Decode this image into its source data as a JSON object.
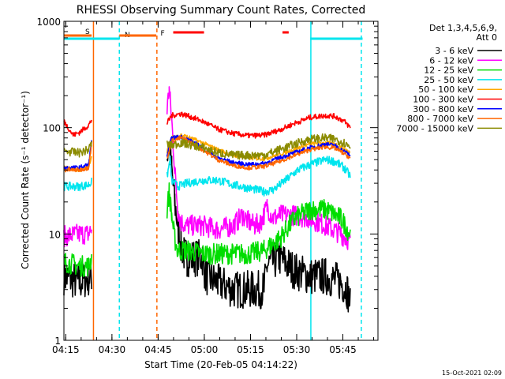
{
  "chart_data": {
    "type": "line",
    "title": "RHESSI Observing Summary Count Rates, Corrected",
    "xlabel": "Start Time (20-Feb-05 04:14:22)",
    "ylabel": "Corrected Count Rate (s⁻¹ detector⁻¹)",
    "yscale": "log",
    "ylim": [
      1,
      1000
    ],
    "xlim": [
      0,
      102
    ],
    "x_unit": "minutes after 04:14:22",
    "x_ticks": [
      {
        "t": 0.6,
        "label": "04:15"
      },
      {
        "t": 15.6,
        "label": "04:30"
      },
      {
        "t": 30.6,
        "label": "04:45"
      },
      {
        "t": 45.6,
        "label": "05:00"
      },
      {
        "t": 60.6,
        "label": "05:15"
      },
      {
        "t": 75.6,
        "label": "05:30"
      },
      {
        "t": 90.6,
        "label": "05:45"
      }
    ],
    "y_ticks": [
      {
        "v": 1,
        "label": "1"
      },
      {
        "v": 10,
        "label": "10"
      },
      {
        "v": 100,
        "label": "100"
      },
      {
        "v": 1000,
        "label": "1000"
      }
    ],
    "legend": {
      "header": [
        "Det 1,3,4,5,6,9,",
        "Att 0"
      ],
      "placement": "right"
    },
    "series": [
      {
        "name": "3 - 6 keV",
        "color": "#000000",
        "noise": 0.18,
        "points": [
          [
            0,
            4
          ],
          [
            5,
            3.5
          ],
          [
            9,
            4
          ],
          [
            10,
            null
          ],
          [
            33.5,
            55
          ],
          [
            34.2,
            70
          ],
          [
            35,
            40
          ],
          [
            36,
            20
          ],
          [
            37,
            12
          ],
          [
            38,
            8
          ],
          [
            39,
            6.5
          ],
          [
            40,
            6
          ],
          [
            45,
            6
          ],
          [
            46,
            4
          ],
          [
            50,
            3.5
          ],
          [
            55,
            3
          ],
          [
            60,
            3
          ],
          [
            65,
            3
          ],
          [
            66,
            5
          ],
          [
            70,
            6
          ],
          [
            75,
            4.5
          ],
          [
            80,
            4
          ],
          [
            85,
            4
          ],
          [
            90,
            3.5
          ],
          [
            92,
            3
          ],
          [
            93,
            2.2
          ]
        ]
      },
      {
        "name": "6 - 12 keV",
        "color": "#ff00ff",
        "noise": 0.1,
        "points": [
          [
            0,
            9.5
          ],
          [
            5,
            10
          ],
          [
            8,
            10
          ],
          [
            9,
            11
          ],
          [
            10,
            null
          ],
          [
            33.5,
            150
          ],
          [
            34.2,
            230
          ],
          [
            35,
            120
          ],
          [
            36,
            40
          ],
          [
            37,
            17
          ],
          [
            38,
            13
          ],
          [
            40,
            12
          ],
          [
            45,
            12
          ],
          [
            50,
            11
          ],
          [
            55,
            12
          ],
          [
            58,
            15
          ],
          [
            60,
            13
          ],
          [
            62,
            12
          ],
          [
            64,
            13
          ],
          [
            66,
            18
          ],
          [
            68,
            14
          ],
          [
            70,
            15
          ],
          [
            75,
            15
          ],
          [
            80,
            14
          ],
          [
            85,
            12
          ],
          [
            90,
            10
          ],
          [
            93,
            8.5
          ]
        ]
      },
      {
        "name": "12 - 25 keV",
        "color": "#00dd00",
        "noise": 0.1,
        "points": [
          [
            0,
            5.5
          ],
          [
            5,
            5
          ],
          [
            8,
            5
          ],
          [
            9,
            6
          ],
          [
            10,
            null
          ],
          [
            33.5,
            17
          ],
          [
            34.2,
            25
          ],
          [
            35,
            15
          ],
          [
            36,
            9
          ],
          [
            37,
            7
          ],
          [
            40,
            7
          ],
          [
            45,
            6.5
          ],
          [
            50,
            6.5
          ],
          [
            55,
            6.5
          ],
          [
            60,
            6.5
          ],
          [
            65,
            7
          ],
          [
            70,
            9
          ],
          [
            75,
            14
          ],
          [
            80,
            17
          ],
          [
            85,
            17
          ],
          [
            90,
            14
          ],
          [
            93,
            10
          ]
        ]
      },
      {
        "name": "25 - 50 keV",
        "color": "#00e5ee",
        "noise": 0.04,
        "points": [
          [
            0,
            28
          ],
          [
            5,
            28
          ],
          [
            8,
            29
          ],
          [
            9,
            31
          ],
          [
            10,
            null
          ],
          [
            33.5,
            35
          ],
          [
            34.5,
            50
          ],
          [
            35,
            32
          ],
          [
            37,
            28
          ],
          [
            40,
            30
          ],
          [
            45,
            32
          ],
          [
            50,
            32
          ],
          [
            55,
            29
          ],
          [
            60,
            27
          ],
          [
            65,
            25
          ],
          [
            68,
            26
          ],
          [
            72,
            32
          ],
          [
            76,
            40
          ],
          [
            80,
            45
          ],
          [
            85,
            50
          ],
          [
            88,
            48
          ],
          [
            91,
            42
          ],
          [
            93,
            35
          ]
        ]
      },
      {
        "name": "50 - 100 keV",
        "color": "#ffaa00",
        "noise": 0.02,
        "points": [
          [
            0,
            42
          ],
          [
            5,
            40
          ],
          [
            8,
            42
          ],
          [
            9,
            55
          ],
          [
            10,
            null
          ],
          [
            33.5,
            60
          ],
          [
            35,
            80
          ],
          [
            38,
            85
          ],
          [
            40,
            82
          ],
          [
            45,
            72
          ],
          [
            50,
            62
          ],
          [
            55,
            55
          ],
          [
            60,
            52
          ],
          [
            65,
            51
          ],
          [
            70,
            56
          ],
          [
            75,
            63
          ],
          [
            80,
            70
          ],
          [
            85,
            72
          ],
          [
            88,
            70
          ],
          [
            91,
            64
          ],
          [
            93,
            58
          ]
        ]
      },
      {
        "name": "100 - 300 keV",
        "color": "#ff0000",
        "noise": 0.025,
        "points": [
          [
            0,
            115
          ],
          [
            3,
            85
          ],
          [
            5,
            90
          ],
          [
            8,
            105
          ],
          [
            9,
            118
          ],
          [
            10,
            null
          ],
          [
            33.5,
            110
          ],
          [
            35,
            130
          ],
          [
            38,
            135
          ],
          [
            40,
            130
          ],
          [
            45,
            115
          ],
          [
            50,
            97
          ],
          [
            55,
            88
          ],
          [
            60,
            84
          ],
          [
            65,
            85
          ],
          [
            70,
            95
          ],
          [
            75,
            110
          ],
          [
            80,
            125
          ],
          [
            85,
            130
          ],
          [
            88,
            128
          ],
          [
            91,
            115
          ],
          [
            93,
            100
          ]
        ]
      },
      {
        "name": "300 - 800 keV",
        "color": "#0000ff",
        "noise": 0.02,
        "points": [
          [
            0,
            42
          ],
          [
            5,
            42
          ],
          [
            8,
            45
          ],
          [
            9,
            75
          ],
          [
            10,
            null
          ],
          [
            33.5,
            55
          ],
          [
            35,
            80
          ],
          [
            38,
            82
          ],
          [
            40,
            78
          ],
          [
            45,
            65
          ],
          [
            50,
            52
          ],
          [
            55,
            47
          ],
          [
            60,
            45
          ],
          [
            65,
            46
          ],
          [
            70,
            52
          ],
          [
            75,
            58
          ],
          [
            80,
            65
          ],
          [
            85,
            70
          ],
          [
            88,
            68
          ],
          [
            91,
            60
          ],
          [
            93,
            55
          ]
        ]
      },
      {
        "name": "800 - 7000 keV",
        "color": "#ff6600",
        "noise": 0.02,
        "points": [
          [
            0,
            40
          ],
          [
            5,
            40
          ],
          [
            8,
            42
          ],
          [
            9,
            70
          ],
          [
            10,
            null
          ],
          [
            33.5,
            50
          ],
          [
            35,
            75
          ],
          [
            38,
            80
          ],
          [
            40,
            76
          ],
          [
            45,
            62
          ],
          [
            50,
            50
          ],
          [
            55,
            44
          ],
          [
            60,
            42
          ],
          [
            65,
            43
          ],
          [
            70,
            48
          ],
          [
            75,
            55
          ],
          [
            80,
            62
          ],
          [
            85,
            66
          ],
          [
            88,
            64
          ],
          [
            91,
            57
          ],
          [
            93,
            52
          ]
        ]
      },
      {
        "name": "7000 - 15000 keV",
        "color": "#8b8b00",
        "noise": 0.04,
        "points": [
          [
            0,
            60
          ],
          [
            5,
            58
          ],
          [
            8,
            62
          ],
          [
            9,
            72
          ],
          [
            10,
            null
          ],
          [
            33.5,
            70
          ],
          [
            35,
            68
          ],
          [
            38,
            72
          ],
          [
            40,
            70
          ],
          [
            45,
            65
          ],
          [
            50,
            58
          ],
          [
            55,
            55
          ],
          [
            60,
            55
          ],
          [
            65,
            55
          ],
          [
            70,
            62
          ],
          [
            75,
            70
          ],
          [
            80,
            78
          ],
          [
            85,
            80
          ],
          [
            88,
            78
          ],
          [
            91,
            72
          ],
          [
            93,
            66
          ]
        ]
      }
    ],
    "annotations": [
      {
        "label": "S",
        "color": "#ff6600",
        "x_from": 0,
        "x_to": 9,
        "level": 1.0
      },
      {
        "label": "N",
        "color": "#00e5ee",
        "x_from": 0,
        "x_to": 18,
        "level": 1.5
      },
      {
        "label": "F",
        "color": "#ff0000",
        "x_from": 35.5,
        "x_to": 45.5,
        "level": 0.5
      },
      {
        "label": "",
        "color": "#ff0000",
        "x_from": 71,
        "x_to": 73,
        "level": 0.5
      },
      {
        "label": "",
        "color": "#ff6600",
        "x_from": 18,
        "x_to": 30,
        "level": 1.0
      },
      {
        "label": "",
        "color": "#00e5ee",
        "x_from": 80,
        "x_to": 97,
        "level": 1.5
      }
    ],
    "vertical_lines": [
      {
        "t": 9.6,
        "color": "#ff6600",
        "dashed": false
      },
      {
        "t": 18,
        "color": "#00e5ee",
        "dashed": true
      },
      {
        "t": 30.2,
        "color": "#ff6600",
        "dashed": true
      },
      {
        "t": 80.2,
        "color": "#00e5ee",
        "dashed": false
      },
      {
        "t": 96.6,
        "color": "#00e5ee",
        "dashed": true
      }
    ]
  },
  "footer": {
    "date": "15-Oct-2021 02:09"
  }
}
